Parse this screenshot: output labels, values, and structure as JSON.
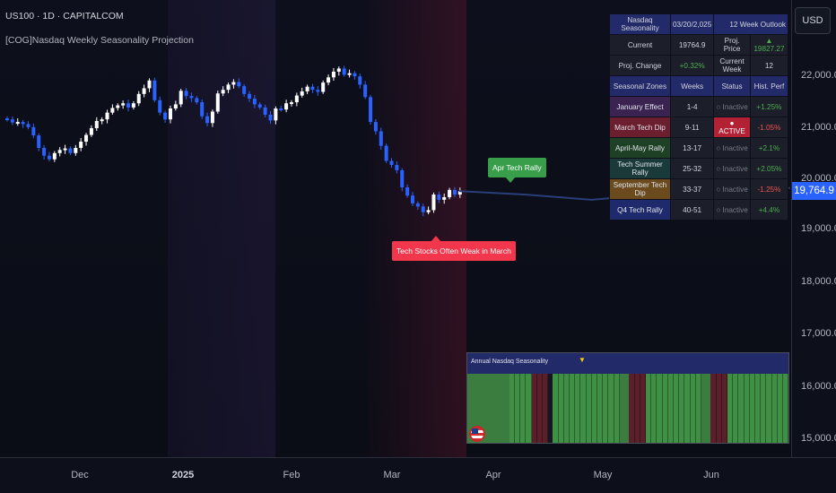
{
  "header": {
    "symbol": "US100 · 1D · CAPITALCOM",
    "indicator": "[COG]Nasdaq Weekly Seasonality Projection"
  },
  "price_axis": {
    "currency": "USD",
    "labels": [
      "22,000.0",
      "21,000.0",
      "20,000.0",
      "19,000.0",
      "18,000.0",
      "17,000.0",
      "16,000.0",
      "15,000.0"
    ],
    "current": "19,764.9"
  },
  "time_axis": {
    "labels": [
      "Dec",
      "2025",
      "Feb",
      "Mar",
      "Apr",
      "May",
      "Jun"
    ]
  },
  "annotations": {
    "apr_rally": "Apr Tech Rally",
    "march_weak": "Tech Stocks Often Weak in March"
  },
  "table": {
    "title": "Nasdaq Seasonality",
    "date": "03/20/2,025",
    "outlook": "12 Week Outlook",
    "current_label": "Current",
    "current_value": "19764.9",
    "proj_price_label": "Proj. Price",
    "proj_price_value": "▲ 19827.27",
    "proj_change_label": "Proj. Change",
    "proj_change_value": "+0.32%",
    "current_week_label": "Current Week",
    "current_week_value": "12",
    "col_zone": "Seasonal Zones",
    "col_weeks": "Weeks",
    "col_status": "Status",
    "col_perf": "Hist. Perf",
    "rows": [
      {
        "zone": "January Effect",
        "weeks": "1-4",
        "status": "○ Inactive",
        "perf": "+1.25%",
        "zone_color": "#3a2350",
        "perf_color": "#4caf50",
        "active": false
      },
      {
        "zone": "March Tech Dip",
        "weeks": "9-11",
        "status": "● ACTIVE",
        "perf": "-1.05%",
        "zone_color": "#6b1e2e",
        "perf_color": "#ef5350",
        "active": true
      },
      {
        "zone": "April-May Rally",
        "weeks": "13-17",
        "status": "○ Inactive",
        "perf": "+2.1%",
        "zone_color": "#1e4025",
        "perf_color": "#4caf50",
        "active": false
      },
      {
        "zone": "Tech Summer Rally",
        "weeks": "25-32",
        "status": "○ Inactive",
        "perf": "+2.05%",
        "zone_color": "#1a3a3a",
        "perf_color": "#4caf50",
        "active": false
      },
      {
        "zone": "September Tech Dip",
        "weeks": "33-37",
        "status": "○ Inactive",
        "perf": "-1.25%",
        "zone_color": "#6b4a1e",
        "perf_color": "#ef5350",
        "active": false
      },
      {
        "zone": "Q4 Tech Rally",
        "weeks": "40-51",
        "status": "○ Inactive",
        "perf": "+4.4%",
        "zone_color": "#1e2a6b",
        "perf_color": "#4caf50",
        "active": false
      }
    ]
  },
  "seasonality_panel": {
    "title": "Annual Nasdaq Seasonality",
    "marker": "▼"
  },
  "colors": {
    "up_candle": "#ffffff",
    "down_candle": "#2962ff",
    "projection": "#2a3f7a",
    "accent": "#2962ff",
    "bull": "#4caf50",
    "bear": "#ef5350"
  },
  "chart_data": {
    "type": "candlestick",
    "title": "US100 · 1D · CAPITALCOM",
    "ylim": [
      14800,
      22700
    ],
    "closes": [
      21150,
      21090,
      21100,
      21060,
      21000,
      20840,
      20600,
      20450,
      20380,
      20500,
      20560,
      20590,
      20500,
      20600,
      20720,
      20850,
      20980,
      21120,
      21150,
      21280,
      21370,
      21420,
      21460,
      21380,
      21460,
      21640,
      21750,
      21900,
      21520,
      21280,
      21150,
      21360,
      21440,
      21700,
      21600,
      21560,
      21480,
      21210,
      21080,
      21300,
      21650,
      21720,
      21820,
      21870,
      21790,
      21640,
      21550,
      21440,
      21380,
      21240,
      21130,
      21360,
      21340,
      21460,
      21480,
      21610,
      21690,
      21780,
      21720,
      21680,
      21860,
      21960,
      22070,
      22130,
      22010,
      22040,
      21980,
      21820,
      21580,
      21100,
      20920,
      20640,
      20350,
      20270,
      20170,
      19840,
      19680,
      19530,
      19470,
      19360,
      19400,
      19700,
      19600,
      19650,
      19790,
      19700,
      19764.9
    ],
    "projection": [
      19764.9,
      19700,
      19600,
      19710,
      19780,
      19827.27
    ],
    "seasonality_weeks": [
      "g",
      "g",
      "g",
      "g",
      "g",
      "g",
      "g",
      "g",
      "g",
      "G",
      "G",
      "G",
      "G",
      "R",
      "R",
      "R",
      "D",
      "G",
      "G",
      "G",
      "G",
      "G",
      "G",
      "G",
      "G",
      "G",
      "G",
      "G",
      "G",
      "g",
      "g",
      "R",
      "R",
      "R",
      "G",
      "G",
      "G",
      "G",
      "G",
      "G",
      "G",
      "G",
      "G",
      "G",
      "g",
      "g",
      "R",
      "R",
      "R",
      "G",
      "G",
      "G",
      "G",
      "G",
      "G",
      "G",
      "G",
      "G",
      "G",
      "G"
    ]
  }
}
